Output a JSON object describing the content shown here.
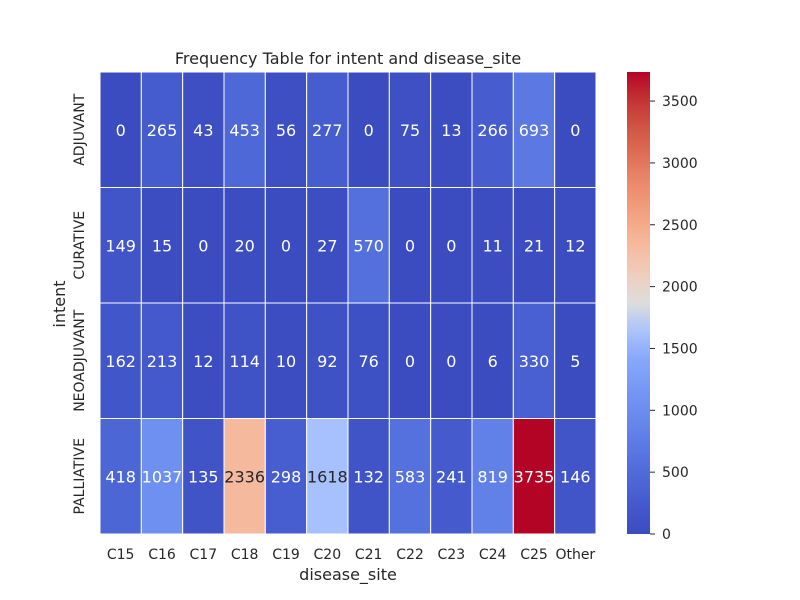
{
  "chart_data": {
    "type": "heatmap",
    "title": "Frequency Table for intent and disease_site",
    "xlabel": "disease_site",
    "ylabel": "intent",
    "x_categories": [
      "C15",
      "C16",
      "C17",
      "C18",
      "C19",
      "C20",
      "C21",
      "C22",
      "C23",
      "C24",
      "C25",
      "Other"
    ],
    "y_categories": [
      "ADJUVANT",
      "CURATIVE",
      "NEOADJUVANT",
      "PALLIATIVE"
    ],
    "values": [
      [
        0,
        265,
        43,
        453,
        56,
        277,
        0,
        75,
        13,
        266,
        693,
        0
      ],
      [
        149,
        15,
        0,
        20,
        0,
        27,
        570,
        0,
        0,
        11,
        21,
        12
      ],
      [
        162,
        213,
        12,
        114,
        10,
        92,
        76,
        0,
        0,
        6,
        330,
        5
      ],
      [
        418,
        1037,
        135,
        2336,
        298,
        1618,
        132,
        583,
        241,
        819,
        3735,
        146
      ]
    ],
    "colormap": "coolwarm",
    "vmin": 0,
    "vmax": 3735,
    "colorbar_ticks": [
      0,
      500,
      1000,
      1500,
      2000,
      2500,
      3000,
      3500
    ],
    "grid": false,
    "colors": {
      "low": "#3b4cc0",
      "mid": "#dddddd",
      "high": "#b40426",
      "cell_border": "#ffffff"
    }
  }
}
